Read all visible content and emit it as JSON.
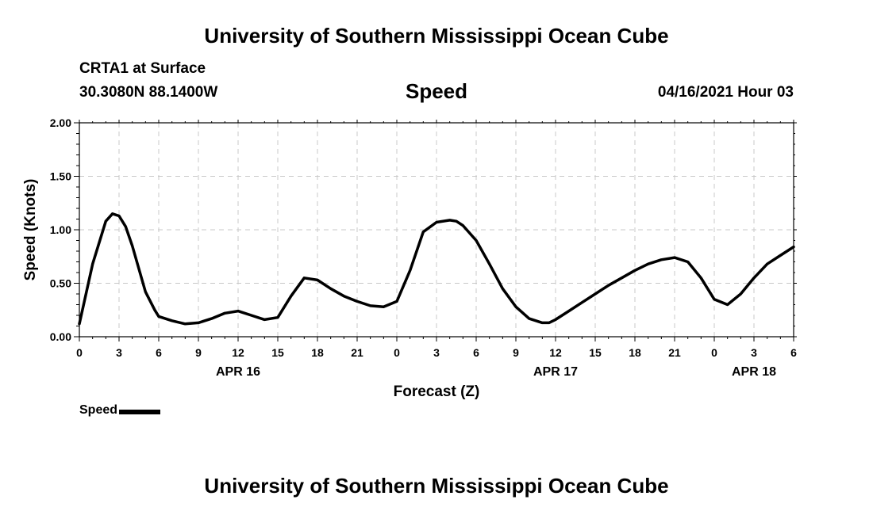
{
  "header": {
    "org_title": "University of Southern Mississippi Ocean Cube",
    "station": "CRTA1 at Surface",
    "coordinates": "30.3080N  88.1400W",
    "timestamp": "04/16/2021 Hour 03"
  },
  "footer": {
    "org_title": "University of Southern Mississippi Ocean Cube"
  },
  "chart_data": {
    "type": "line",
    "title": "Speed",
    "xlabel": "Forecast (Z)",
    "ylabel": "Speed (Knots)",
    "xlim": [
      0,
      54
    ],
    "ylim": [
      0,
      2
    ],
    "grid": true,
    "legend": "bottom-left",
    "y_ticks": [
      "0.00",
      "0.50",
      "1.00",
      "1.50",
      "2.00"
    ],
    "x_tick_labels": [
      "0",
      "3",
      "6",
      "9",
      "12",
      "15",
      "18",
      "21",
      "0",
      "3",
      "6",
      "9",
      "12",
      "15",
      "18",
      "21",
      "0",
      "3",
      "6"
    ],
    "date_labels": [
      {
        "label": "APR 16",
        "hour": 12
      },
      {
        "label": "APR 17",
        "hour": 36
      },
      {
        "label": "APR 18",
        "hour": 51
      }
    ],
    "series": [
      {
        "name": "Speed",
        "color": "#000000",
        "x": [
          0,
          1,
          2,
          2.5,
          3,
          3.5,
          4,
          5,
          5.7,
          6,
          7,
          8,
          9,
          10,
          11,
          12,
          13,
          14,
          15,
          16,
          17,
          18,
          19,
          20,
          21,
          22,
          23,
          24,
          25,
          26,
          27,
          28,
          28.5,
          29,
          30,
          31,
          32,
          33,
          34,
          35,
          35.5,
          36,
          37,
          38,
          39,
          40,
          41,
          42,
          43,
          44,
          45,
          46,
          47,
          48,
          49,
          50,
          51,
          52,
          53,
          54
        ],
        "y": [
          0.12,
          0.68,
          1.08,
          1.15,
          1.13,
          1.03,
          0.85,
          0.42,
          0.25,
          0.19,
          0.15,
          0.12,
          0.13,
          0.17,
          0.22,
          0.24,
          0.2,
          0.16,
          0.18,
          0.38,
          0.55,
          0.53,
          0.45,
          0.38,
          0.33,
          0.29,
          0.28,
          0.33,
          0.62,
          0.98,
          1.07,
          1.09,
          1.08,
          1.04,
          0.9,
          0.68,
          0.45,
          0.28,
          0.17,
          0.13,
          0.13,
          0.16,
          0.24,
          0.32,
          0.4,
          0.48,
          0.55,
          0.62,
          0.68,
          0.72,
          0.74,
          0.7,
          0.55,
          0.35,
          0.3,
          0.4,
          0.55,
          0.68,
          0.76,
          0.84
        ]
      }
    ]
  }
}
